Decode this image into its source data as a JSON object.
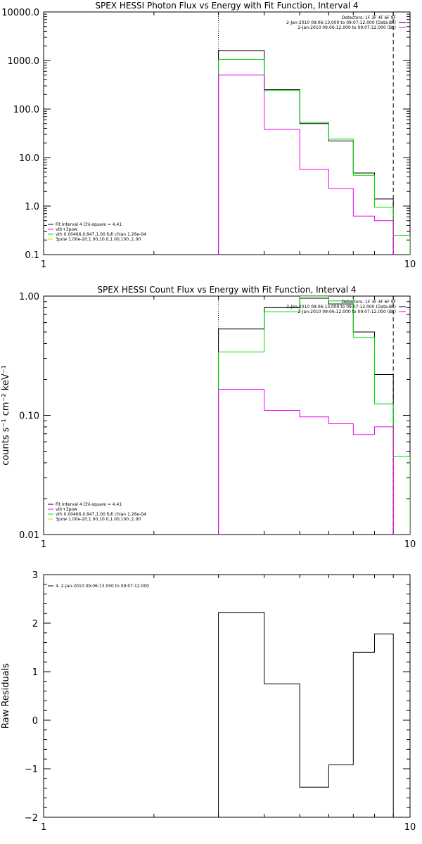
{
  "chart_data": [
    {
      "type": "line",
      "title": "SPEX HESSI Photon Flux vs Energy with Fit Function, Interval 4",
      "ylabel": "",
      "xlim": [
        1,
        10
      ],
      "ylim": [
        0.1,
        10000
      ],
      "xscale": "log",
      "yscale": "log",
      "x_tick_labels": [
        "1",
        "10"
      ],
      "y_tick_labels": [
        "0.1",
        "1.0",
        "10.0",
        "100.0",
        "1000.0",
        "10000.0"
      ],
      "x_edges": [
        3.0,
        4.0,
        5.0,
        6.0,
        7.0,
        8.0,
        9.0,
        10.0
      ],
      "series": [
        {
          "color": "#000000",
          "values": [
            1600,
            250,
            50,
            22,
            4.8,
            1.4,
            null
          ]
        },
        {
          "color": "#00dd00",
          "values": [
            1050,
            240,
            53,
            24,
            4.3,
            0.95,
            0.25
          ]
        },
        {
          "color": "#ee00ee",
          "values": [
            500,
            38,
            5.7,
            2.3,
            0.62,
            0.5,
            null
          ]
        }
      ],
      "vlines": [
        {
          "x": 3.0,
          "style": "dotted"
        },
        {
          "x": 9.0,
          "style": "dashed"
        }
      ],
      "legend_left": [
        {
          "text": "Fit Interval  4    Chi-square = 4.41",
          "color": "#000000"
        },
        {
          "text": "vth+3pow",
          "color": "#ee00ee"
        },
        {
          "text": "vth 0.00466,0.847,1.00   full chian 1.26e-04",
          "color": "#00dd00"
        },
        {
          "text": "3pow 1.00e-20,1.00,10.0,1.00,100.,1.00",
          "color": "#dddd00"
        }
      ],
      "legend_right": [
        {
          "text": "Detectors: 1F 3F 4F 6F 9F",
          "color": "#000000"
        },
        {
          "text": "2-Jan-2010 09:06:13.000 to 09:07:12.000 (Data-Bk)",
          "color": "#000000"
        },
        {
          "text": "2-Jan-2010 09:06:12.000 to 09:07:12.000 (Bk)",
          "color": "#ee00ee"
        }
      ]
    },
    {
      "type": "line",
      "title": "SPEX HESSI Count Flux vs Energy with Fit Function, Interval 4",
      "ylabel": "counts s⁻¹ cm⁻² keV⁻¹",
      "xlim": [
        1,
        10
      ],
      "ylim": [
        0.01,
        1.0
      ],
      "xscale": "log",
      "yscale": "log",
      "x_tick_labels": [
        "1",
        "10"
      ],
      "y_tick_labels": [
        "0.01",
        "0.10",
        "1.00"
      ],
      "x_edges": [
        3.0,
        4.0,
        5.0,
        6.0,
        7.0,
        8.0,
        9.0,
        10.0
      ],
      "series": [
        {
          "color": "#000000",
          "values": [
            0.53,
            0.8,
            0.96,
            0.86,
            0.5,
            0.22,
            null
          ]
        },
        {
          "color": "#00dd00",
          "values": [
            0.34,
            0.74,
            1.0,
            0.91,
            0.45,
            0.125,
            0.045
          ]
        },
        {
          "color": "#ee00ee",
          "values": [
            0.165,
            0.11,
            0.097,
            0.085,
            0.069,
            0.08,
            null
          ]
        }
      ],
      "vlines": [
        {
          "x": 3.0,
          "style": "dotted"
        },
        {
          "x": 9.0,
          "style": "dashed"
        }
      ],
      "legend_left": [
        {
          "text": "Fit Interval  4    Chi-square = 4.41",
          "color": "#000000"
        },
        {
          "text": "vth+3pow",
          "color": "#ee00ee"
        },
        {
          "text": "vth 0.00466,0.847,1.00   full chian 1.26e-04",
          "color": "#00dd00"
        },
        {
          "text": "3pow 1.00e-20,1.00,10.0,1.00,100.,1.00",
          "color": "#dddd00"
        }
      ],
      "legend_right": [
        {
          "text": "Detectors: 1F 3F 4F 6F 9F",
          "color": "#000000"
        },
        {
          "text": "2-Jan-2010 09:06:13.000 to 09:07:12.000 (Data-Bk)",
          "color": "#000000"
        },
        {
          "text": "2-Jan-2010 09:06:12.000 to 09:07:12.000 (Bk)",
          "color": "#ee00ee"
        }
      ]
    },
    {
      "type": "line",
      "title": "",
      "ylabel": "Raw Residuals",
      "xlim": [
        1,
        10
      ],
      "ylim": [
        -2,
        3
      ],
      "xscale": "log",
      "yscale": "linear",
      "x_tick_labels": [
        "1",
        "10"
      ],
      "y_tick_labels": [
        "−2",
        "−1",
        "0",
        "1",
        "2",
        "3"
      ],
      "x_edges": [
        3.0,
        4.0,
        5.0,
        6.0,
        7.0,
        8.0,
        9.0
      ],
      "series": [
        {
          "color": "#000000",
          "values": [
            2.22,
            0.75,
            -1.38,
            -0.92,
            1.4,
            1.78
          ]
        }
      ],
      "vlines": [],
      "legend_left": [
        {
          "text": "4.  2-Jan-2010 09:06:13.000 to 09:07:12.000",
          "color": "#000000"
        }
      ],
      "legend_right": []
    }
  ]
}
